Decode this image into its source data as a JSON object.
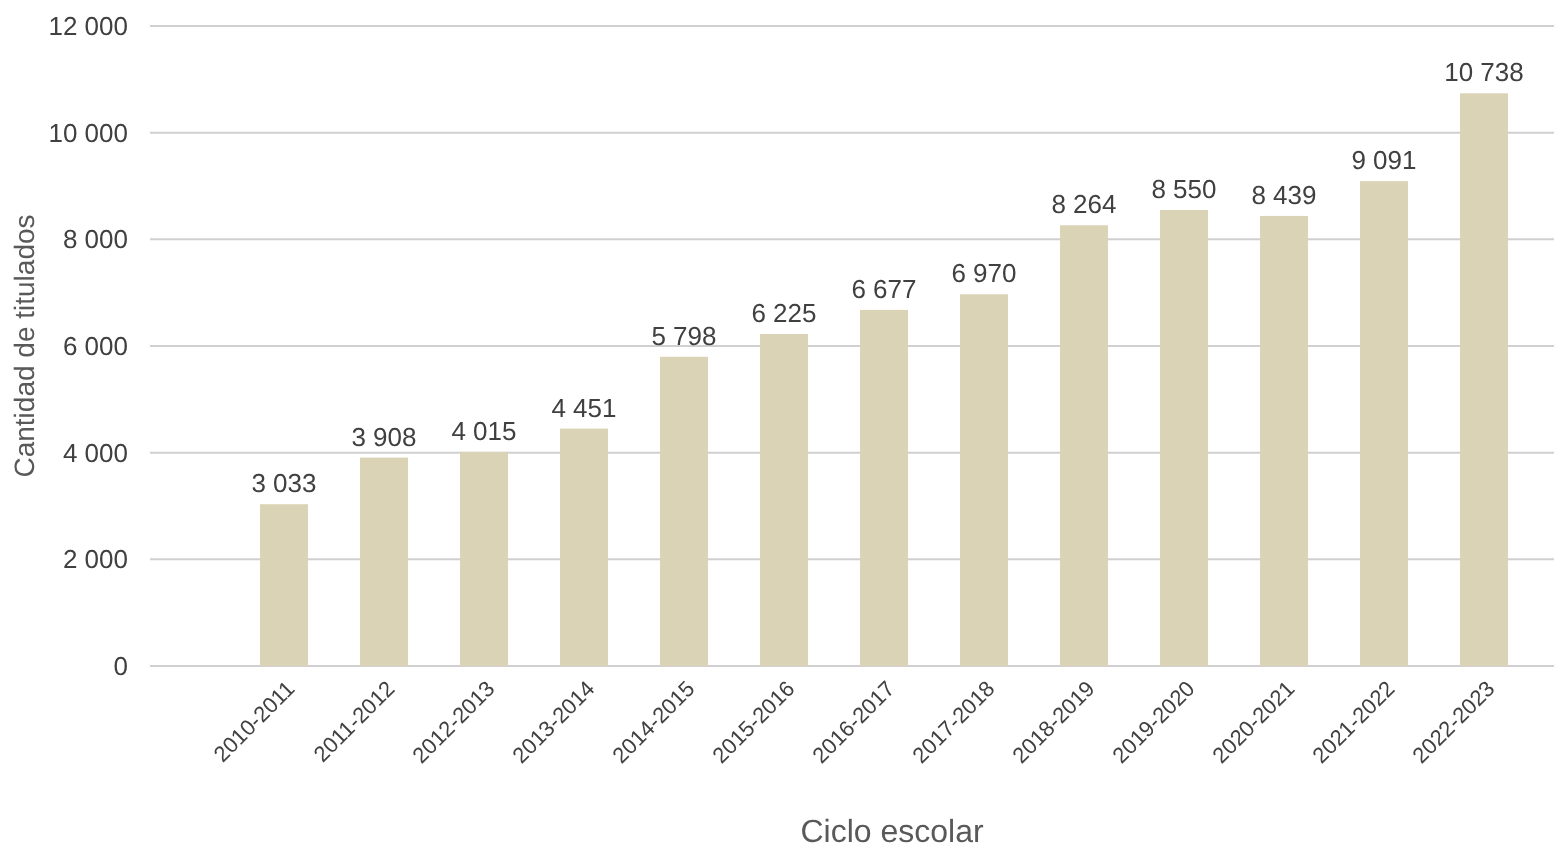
{
  "chart_data": {
    "type": "bar",
    "xlabel": "Ciclo escolar",
    "ylabel": "Cantidad de titulados",
    "categories": [
      "2010-2011",
      "2011-2012",
      "2012-2013",
      "2013-2014",
      "2014-2015",
      "2015-2016",
      "2016-2017",
      "2017-2018",
      "2018-2019",
      "2019-2020",
      "2020-2021",
      "2021-2022",
      "2022-2023"
    ],
    "values": [
      3033,
      3908,
      4015,
      4451,
      5798,
      6225,
      6677,
      6970,
      8264,
      8550,
      8439,
      9091,
      10738
    ],
    "value_labels": [
      "3 033",
      "3 908",
      "4 015",
      "4 451",
      "5 798",
      "6 225",
      "6 677",
      "6 970",
      "8 264",
      "8 550",
      "8 439",
      "9 091",
      "10 738"
    ],
    "color": "#dbd3b5",
    "ylim": [
      0,
      12000
    ],
    "yticks": [
      0,
      {
        "value": 2000,
        "label": "2 000"
      },
      {
        "value": 4000,
        "label": "4 000"
      },
      {
        "value": 6000,
        "label": "6 000"
      },
      {
        "value": 8000,
        "label": "8 000"
      },
      {
        "value": 10000,
        "label": "10 000"
      },
      {
        "value": 12000,
        "label": "12 000"
      }
    ],
    "grid": "y"
  }
}
